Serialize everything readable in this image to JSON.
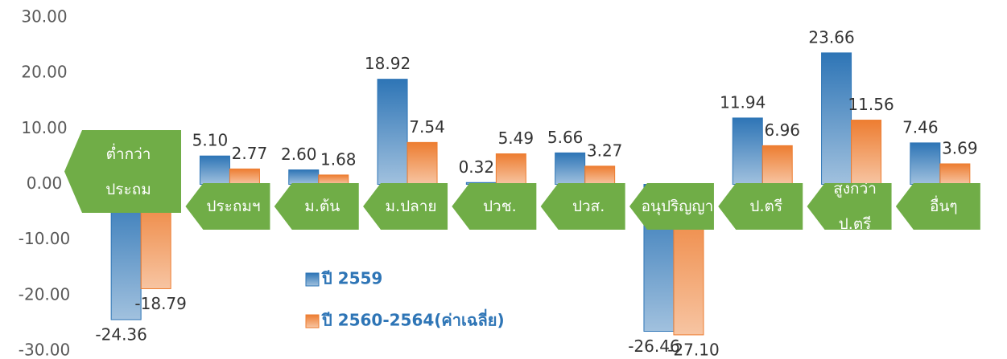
{
  "chart_data": {
    "type": "bar",
    "categories": [
      "ต่ำกว่า\nประถม",
      "ประถมฯ",
      "ม.ต้น",
      "ม.ปลาย",
      "ปวช.",
      "ปวส.",
      "อนุปริญญา",
      "ป.ตรี",
      "สูงกว่าป.ตรี",
      "อื่นๆ"
    ],
    "series": [
      {
        "name": "ปี 2559",
        "color": "#2e75b6",
        "values": [
          -24.36,
          5.1,
          2.6,
          18.92,
          0.32,
          5.66,
          -26.46,
          11.94,
          23.66,
          7.46
        ],
        "value_labels": [
          "-24.36",
          "5.10",
          "2.60",
          "18.92",
          "0.32",
          "5.66",
          "-26.46",
          "11.94",
          "23.66",
          "7.46"
        ]
      },
      {
        "name": "ปี 2560-2564(ค่าเฉลี่ย)",
        "color": "#ed7d31",
        "values": [
          -18.79,
          2.77,
          1.68,
          7.54,
          5.49,
          3.27,
          -27.1,
          6.96,
          11.56,
          3.69
        ],
        "value_labels": [
          "-18.79",
          "2.77",
          "1.68",
          "7.54",
          "5.49",
          "3.27",
          "-27.10",
          "6.96",
          "11.56",
          "3.69"
        ]
      }
    ],
    "ylim": [
      -30,
      30
    ],
    "yticks": [
      {
        "value": -30,
        "label": "-30.00"
      },
      {
        "value": -20,
        "label": "-20.00"
      },
      {
        "value": -10,
        "label": "-10.00"
      },
      {
        "value": 0,
        "label": "0.00"
      },
      {
        "value": 10,
        "label": "10.00"
      },
      {
        "value": 20,
        "label": "20.00"
      },
      {
        "value": 30,
        "label": "30.00"
      }
    ],
    "label_color": "#70ad47"
  }
}
